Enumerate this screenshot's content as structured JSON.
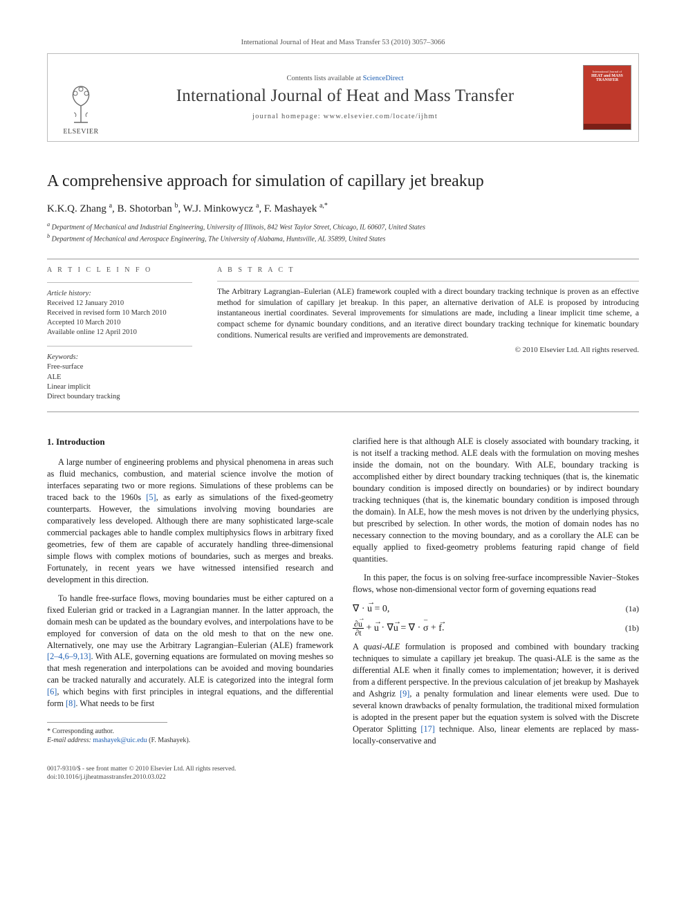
{
  "journal_ref": "International Journal of Heat and Mass Transfer 53 (2010) 3057–3066",
  "header": {
    "contents_prefix": "Contents lists available at ",
    "contents_link": "ScienceDirect",
    "journal_title": "International Journal of Heat and Mass Transfer",
    "homepage_prefix": "journal homepage: ",
    "homepage_url": "www.elsevier.com/locate/ijhmt",
    "publisher_word": "ELSEVIER",
    "cover_text_top": "International Journal of",
    "cover_text_main": "HEAT and MASS\nTRANSFER"
  },
  "article": {
    "title": "A comprehensive approach for simulation of capillary jet breakup",
    "authors_html": "K.K.Q. Zhang <sup>a</sup>, B. Shotorban <sup>b</sup>, W.J. Minkowycz <sup>a</sup>, F. Mashayek <sup>a,*</sup>",
    "affiliations": {
      "a": "Department of Mechanical and Industrial Engineering, University of Illinois, 842 West Taylor Street, Chicago, IL 60607, United States",
      "b": "Department of Mechanical and Aerospace Engineering, The University of Alabama, Huntsville, AL 35899, United States"
    }
  },
  "meta": {
    "info_label": "A R T I C L E   I N F O",
    "abstract_label": "A B S T R A C T",
    "history_head": "Article history:",
    "history": [
      "Received 12 January 2010",
      "Received in revised form 10 March 2010",
      "Accepted 10 March 2010",
      "Available online 12 April 2010"
    ],
    "keywords_head": "Keywords:",
    "keywords": [
      "Free-surface",
      "ALE",
      "Linear implicit",
      "Direct boundary tracking"
    ]
  },
  "abstract": {
    "text": "The Arbitrary Lagrangian–Eulerian (ALE) framework coupled with a direct boundary tracking technique is proven as an effective method for simulation of capillary jet breakup. In this paper, an alternative derivation of ALE is proposed by introducing instantaneous inertial coordinates. Several improvements for simulations are made, including a linear implicit time scheme, a compact scheme for dynamic boundary conditions, and an iterative direct boundary tracking technique for kinematic boundary conditions. Numerical results are verified and improvements are demonstrated.",
    "copyright": "© 2010 Elsevier Ltd. All rights reserved."
  },
  "body": {
    "intro_heading": "1. Introduction",
    "left": {
      "p1_a": "A large number of engineering problems and physical phenomena in areas such as fluid mechanics, combustion, and material science involve the motion of interfaces separating two or more regions. Simulations of these problems can be traced back to the 1960s ",
      "p1_ref1": "[5]",
      "p1_b": ", as early as simulations of the fixed-geometry counterparts. However, the simulations involving moving boundaries are comparatively less developed. Although there are many sophisticated large-scale commercial packages able to handle complex multiphysics flows in arbitrary fixed geometries, few of them are capable of accurately handling three-dimensional simple flows with complex motions of boundaries, such as merges and breaks. Fortunately, in recent years we have witnessed intensified research and development in this direction.",
      "p2_a": "To handle free-surface flows, moving boundaries must be either captured on a fixed Eulerian grid or tracked in a Lagrangian manner. In the latter approach, the domain mesh can be updated as the boundary evolves, and interpolations have to be employed for conversion of data on the old mesh to that on the new one. Alternatively, one may use the Arbitrary Lagrangian–Eulerian (ALE) framework ",
      "p2_ref1": "[2–4,6–9,13]",
      "p2_b": ". With ALE, governing equations are formulated on moving meshes so that mesh regeneration and interpolations can be avoided and moving boundaries can be tracked naturally and accurately. ALE is categorized into the integral form ",
      "p2_ref2": "[6]",
      "p2_c": ", which begins with first principles in integral equations, and the differential form ",
      "p2_ref3": "[8]",
      "p2_d": ". What needs to be first "
    },
    "right": {
      "p1": "clarified here is that although ALE is closely associated with boundary tracking, it is not itself a tracking method. ALE deals with the formulation on moving meshes inside the domain, not on the boundary. With ALE, boundary tracking is accomplished either by direct boundary tracking techniques (that is, the kinematic boundary condition is imposed directly on boundaries) or by indirect boundary tracking techniques (that is, the kinematic boundary condition is imposed through the domain). In ALE, how the mesh moves is not driven by the underlying physics, but prescribed by selection. In other words, the motion of domain nodes has no necessary connection to the moving boundary, and as a corollary the ALE can be equally applied to fixed-geometry problems featuring rapid change of field quantities.",
      "p2": "In this paper, the focus is on solving free-surface incompressible Navier–Stokes flows, whose non-dimensional vector form of governing equations read",
      "eq1a_num": "(1a)",
      "eq1b_num": "(1b)",
      "p3_a": "A ",
      "p3_em": "quasi-ALE",
      "p3_b": " formulation is proposed and combined with boundary tracking techniques to simulate a capillary jet breakup. The quasi-ALE is the same as the differential ALE when it finally comes to implementation; however, it is derived from a different perspective. In the previous calculation of jet breakup by Mashayek and Ashgriz ",
      "p3_ref1": "[9]",
      "p3_c": ", a penalty formulation and linear elements were used. Due to several known drawbacks of penalty formulation, the traditional mixed formulation is adopted in the present paper but the equation system is solved with the Discrete Operator Splitting ",
      "p3_ref2": "[17]",
      "p3_d": " technique. Also, linear elements are replaced by mass-locally-conservative and"
    }
  },
  "footnote": {
    "corr": "* Corresponding author.",
    "email_label": "E-mail address:",
    "email": "mashayek@uic.edu",
    "email_paren": "(F. Mashayek)."
  },
  "bottom": {
    "issn_line": "0017-9310/$ - see front matter © 2010 Elsevier Ltd. All rights reserved.",
    "doi_line": "doi:10.1016/j.ijheatmasstransfer.2010.03.022"
  },
  "colors": {
    "link": "#1e5fb3",
    "rule": "#999999",
    "cover": "#c0392b"
  }
}
